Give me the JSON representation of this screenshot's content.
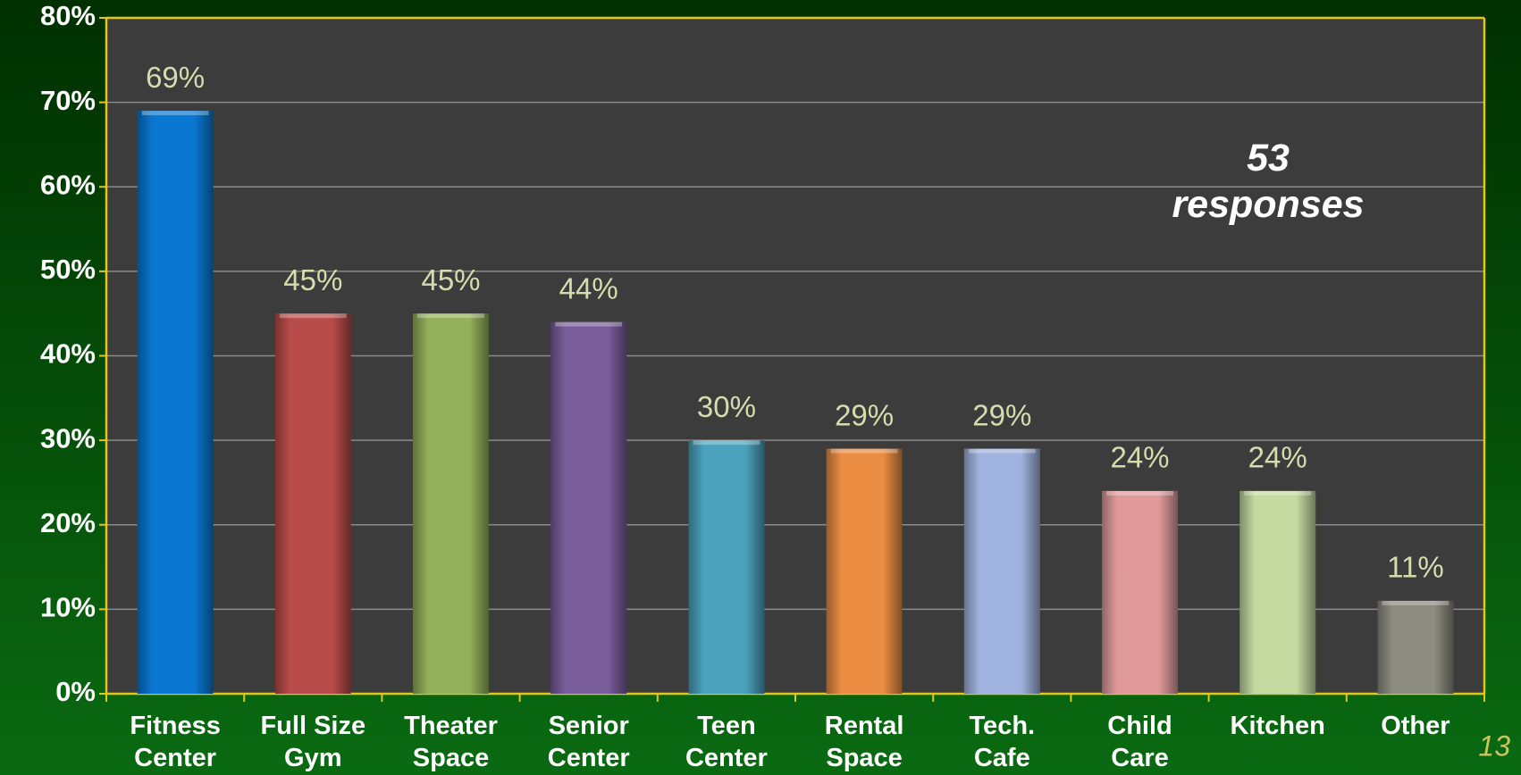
{
  "chart_data": {
    "type": "bar",
    "categories": [
      "Fitness\nCenter",
      "Full Size\nGym",
      "Theater\nSpace",
      "Senior\nCenter",
      "Teen\nCenter",
      "Rental\nSpace",
      "Tech.\nCafe",
      "Child\nCare",
      "Kitchen",
      "Other"
    ],
    "values": [
      69,
      45,
      45,
      44,
      30,
      29,
      29,
      24,
      24,
      11
    ],
    "value_labels": [
      "69%",
      "45%",
      "45%",
      "44%",
      "30%",
      "29%",
      "29%",
      "24%",
      "24%",
      "11%"
    ],
    "colors": [
      "#0a78d2",
      "#b84c4a",
      "#93b05a",
      "#7a5e9c",
      "#4aa2bc",
      "#ea8c42",
      "#9fb3de",
      "#e09a9a",
      "#c4daa0",
      "#8c8c80"
    ],
    "ylim": [
      0,
      80
    ],
    "yticks": [
      {
        "value": 0,
        "label": "0%"
      },
      {
        "value": 10,
        "label": "10%"
      },
      {
        "value": 20,
        "label": "20%"
      },
      {
        "value": 30,
        "label": "30%"
      },
      {
        "value": 40,
        "label": "40%"
      },
      {
        "value": 50,
        "label": "50%"
      },
      {
        "value": 60,
        "label": "60%"
      },
      {
        "value": 70,
        "label": "70%"
      },
      {
        "value": 80,
        "label": "80%"
      }
    ],
    "grid": true,
    "annotation": "53\nresponses",
    "page_number": "13"
  }
}
